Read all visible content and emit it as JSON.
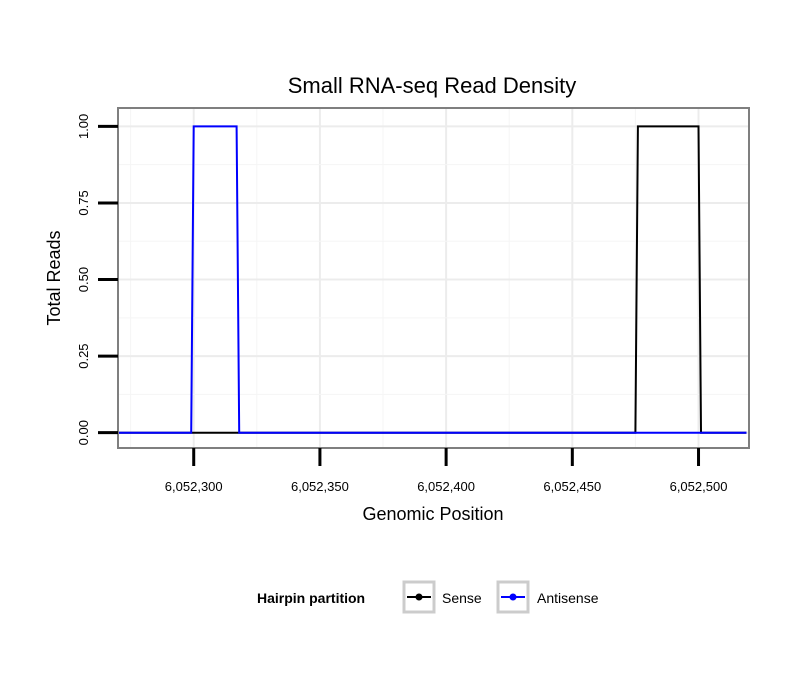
{
  "chart_data": {
    "type": "line",
    "title": "Small RNA-seq Read Density",
    "xlabel": "Genomic Position",
    "ylabel": "Total Reads",
    "xlim": [
      6052270,
      6052520
    ],
    "ylim": [
      -0.05,
      1.06
    ],
    "x_ticks": [
      6052300,
      6052350,
      6052400,
      6052450,
      6052500
    ],
    "x_tick_labels": [
      "6,052,300",
      "6,052,350",
      "6,052,400",
      "6,052,450",
      "6,052,500"
    ],
    "y_ticks": [
      0,
      0.25,
      0.5,
      0.75,
      1.0
    ],
    "y_tick_labels": [
      "0.00",
      "0.25",
      "0.50",
      "0.75",
      "1.00"
    ],
    "grid": true,
    "legend": {
      "title": "Hairpin partition",
      "position": "bottom",
      "entries": [
        {
          "name": "Sense",
          "color": "#000000"
        },
        {
          "name": "Antisense",
          "color": "#0000ff"
        }
      ]
    },
    "series": [
      {
        "name": "Sense",
        "color": "#000000",
        "x": [
          6052268,
          6052475,
          6052476,
          6052500,
          6052501,
          6052519
        ],
        "y": [
          0,
          0,
          1,
          1,
          0,
          0
        ]
      },
      {
        "name": "Antisense",
        "color": "#0000ff",
        "x": [
          6052268,
          6052299,
          6052300,
          6052317,
          6052318,
          6052519
        ],
        "y": [
          0,
          0,
          1,
          1,
          0,
          0
        ]
      }
    ]
  }
}
